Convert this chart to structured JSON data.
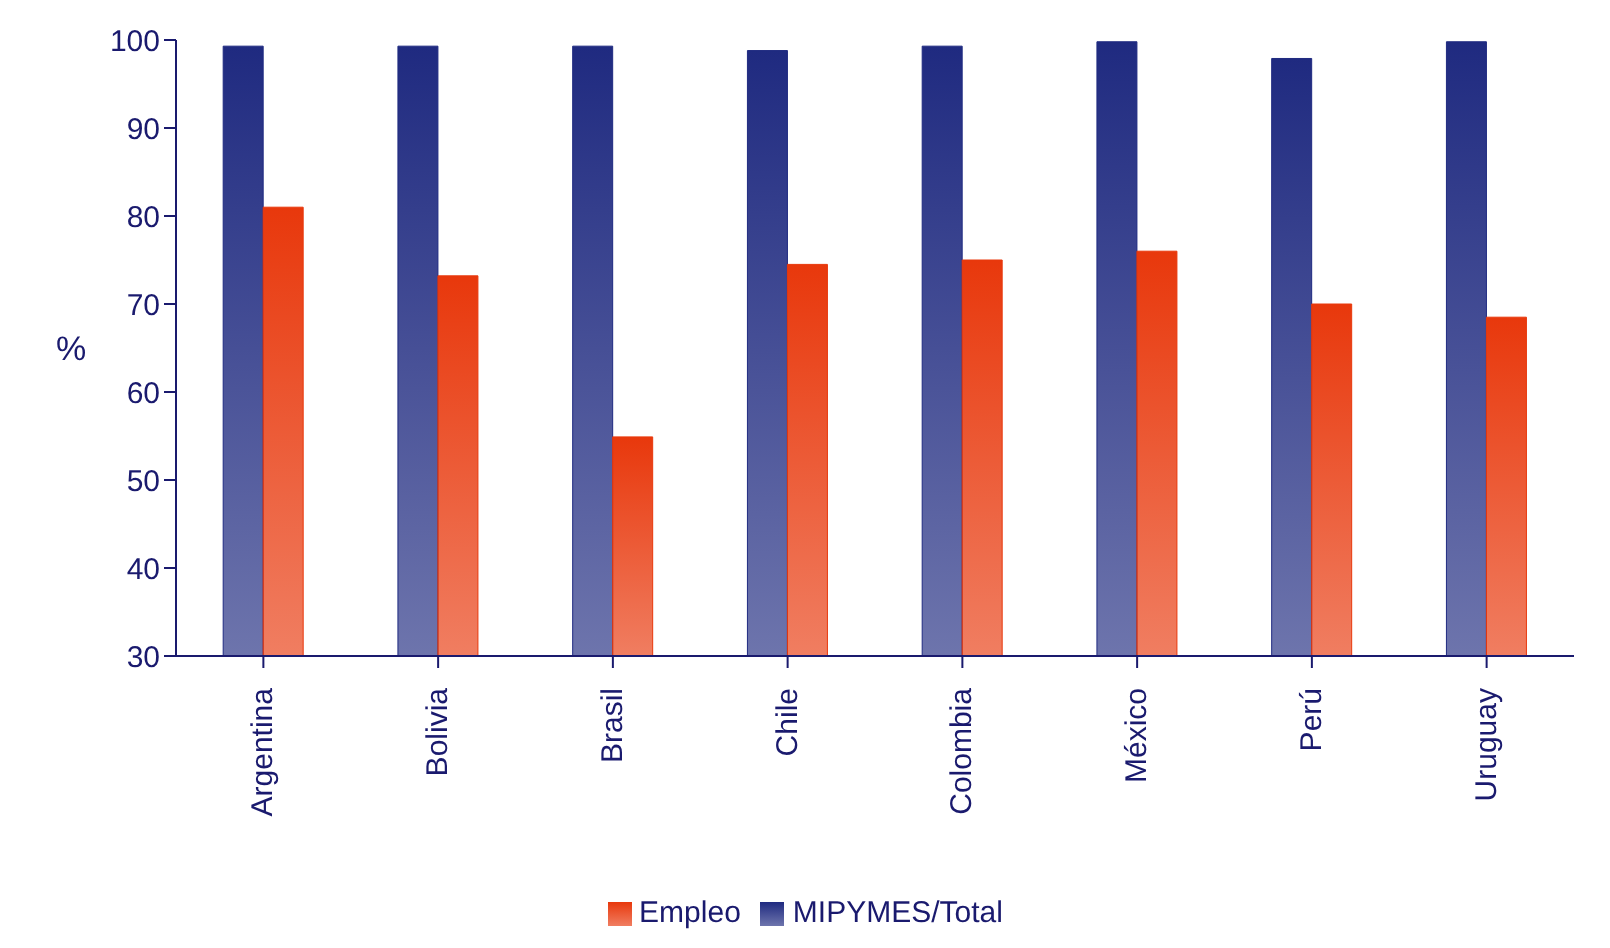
{
  "chart_data": {
    "type": "bar",
    "ylabel": "%",
    "categories": [
      "Argentina",
      "Bolivia",
      "Brasil",
      "Chile",
      "Colombia",
      "México",
      "Perú",
      "Uruguay"
    ],
    "series": [
      {
        "name": "MIPYMES/Total",
        "color": "#1f2a80",
        "values": [
          99.3,
          99.3,
          99.3,
          98.8,
          99.3,
          99.8,
          97.9,
          99.8
        ]
      },
      {
        "name": "Empleo",
        "color": "#e8380c",
        "values": [
          81,
          73.2,
          54.9,
          74.5,
          75,
          76,
          70,
          68.5
        ]
      }
    ],
    "ylim": [
      30,
      100
    ],
    "yticks": [
      30,
      40,
      50,
      60,
      70,
      80,
      90,
      100
    ],
    "grid": false,
    "legend": "bottom"
  }
}
